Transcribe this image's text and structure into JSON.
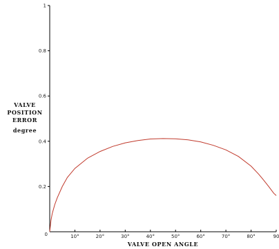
{
  "chart_data": {
    "type": "line",
    "title": "",
    "xlabel": "VALVE OPEN ANGLE",
    "ylabel_lines": [
      "VALVE",
      "POSITION",
      "ERROR",
      "degree"
    ],
    "xlim": [
      0,
      90
    ],
    "ylim": [
      0,
      1
    ],
    "x_ticks": [
      {
        "value": 0,
        "label": "0"
      },
      {
        "value": 10,
        "label": "10°"
      },
      {
        "value": 20,
        "label": "20°"
      },
      {
        "value": 30,
        "label": "30°"
      },
      {
        "value": 40,
        "label": "40°"
      },
      {
        "value": 50,
        "label": "50°"
      },
      {
        "value": 60,
        "label": "60°"
      },
      {
        "value": 70,
        "label": "70°"
      },
      {
        "value": 80,
        "label": "80°"
      },
      {
        "value": 90,
        "label": "90"
      }
    ],
    "y_ticks": [
      {
        "value": 0.2,
        "label": "0.2"
      },
      {
        "value": 0.4,
        "label": "0.4"
      },
      {
        "value": 0.6,
        "label": "0.6"
      },
      {
        "value": 0.8,
        "label": "0.8"
      },
      {
        "value": 1,
        "label": "1"
      }
    ],
    "grid": false,
    "line_color": "#c0392b",
    "series": [
      {
        "x": [
          0,
          0.5,
          1,
          2,
          3,
          5,
          7,
          10,
          15,
          20,
          25,
          30,
          35,
          40,
          45,
          50,
          55,
          60,
          65,
          70,
          75,
          80,
          83,
          85,
          87,
          89,
          90
        ],
        "y": [
          0.0,
          0.05,
          0.08,
          0.12,
          0.15,
          0.2,
          0.24,
          0.28,
          0.325,
          0.355,
          0.377,
          0.393,
          0.403,
          0.41,
          0.412,
          0.411,
          0.406,
          0.397,
          0.382,
          0.362,
          0.333,
          0.29,
          0.255,
          0.228,
          0.2,
          0.17,
          0.16
        ]
      }
    ]
  }
}
